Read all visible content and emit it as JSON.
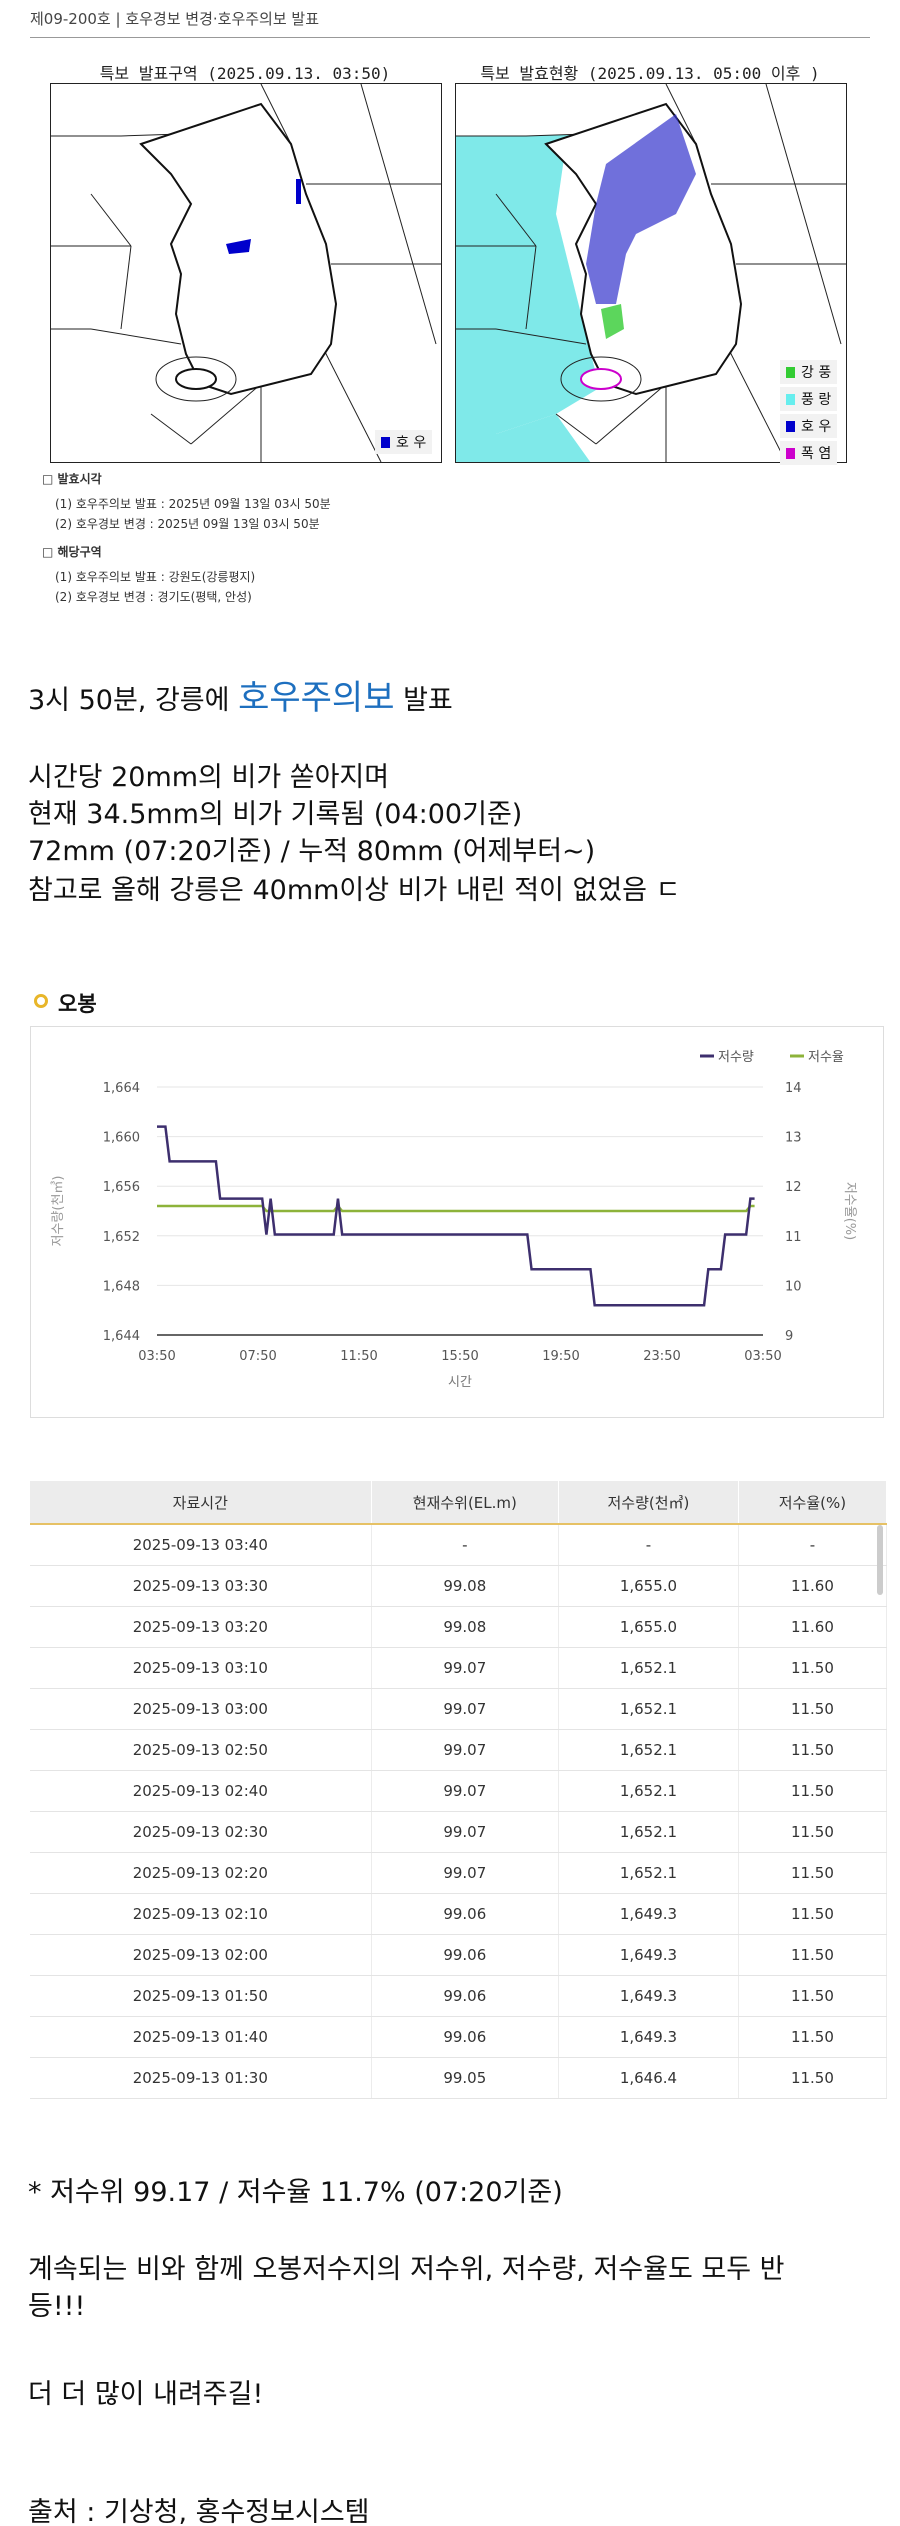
{
  "header": {
    "title": "제09-200호 | 호우경보 변경·호우주의보 발표"
  },
  "maps": [
    {
      "title": "특보 발표구역 (2025.09.13. 03:50)",
      "legend": [
        {
          "label": "호 우",
          "color": "#0000cc"
        }
      ]
    },
    {
      "title": "특보 발효현황 (2025.09.13. 05:00 이후 )",
      "legend": [
        {
          "label": "강 풍",
          "color": "#33cc33"
        },
        {
          "label": "풍 랑",
          "color": "#66eeee"
        },
        {
          "label": "호 우",
          "color": "#0000cc"
        },
        {
          "label": "폭 염",
          "color": "#cc00cc"
        }
      ]
    }
  ],
  "notice": {
    "time_heading": "□ 발효시각",
    "time_items": [
      "(1) 호우주의보 발표 : 2025년 09월 13일 03시 50분",
      "(2) 호우경보 변경 : 2025년 09월 13일 03시 50분"
    ],
    "area_heading": "□ 해당구역",
    "area_items": [
      "(1) 호우주의보 발표 : 강원도(강릉평지)",
      "(2) 호우경보 변경 : 경기도(평택, 안성)"
    ]
  },
  "post": {
    "line1_a": "3시 50분, 강릉에 ",
    "line1_hl": "호우주의보",
    "line1_b": " 발표",
    "line2": "시간당 20mm의 비가 쏟아지며",
    "line3": "현재 34.5mm의 비가 기록됨 (04:00기준)",
    "line4": "72mm (07:20기준) / 누적 80mm (어제부터~)",
    "line5": "참고로 올해 강릉은 40mm이상 비가 내린 적이 없었음 ㄷ",
    "line6": "* 저수위 99.17 / 저수율 11.7% (07:20기준)",
    "line7": "계속되는 비와 함께 오봉저수지의 저수위, 저수량, 저수율도 모두 반",
    "line8": "등!!!",
    "line9": "더 더 많이 내려주길!",
    "line10": "출처 : 기상청, 홍수정보시스템",
    "highlight_color": "#1d6fbf"
  },
  "chart_data": {
    "type": "line",
    "title": "오봉",
    "xlabel": "시간",
    "ylabel": "저수량(천㎥)",
    "ylabel_right": "저수율(%)",
    "x_ticks": [
      "03:50",
      "07:50",
      "11:50",
      "15:50",
      "19:50",
      "23:50",
      "03:50"
    ],
    "ylim": [
      1644,
      1664
    ],
    "y_ticks": [
      "1,644",
      "1,648",
      "1,652",
      "1,656",
      "1,660",
      "1,664"
    ],
    "ylim_right": [
      9,
      14
    ],
    "y_ticks_right": [
      "9",
      "10",
      "11",
      "12",
      "13",
      "14"
    ],
    "grid": true,
    "legend_position": "top-right",
    "series": [
      {
        "name": "저수량",
        "color": "#3d2f6e",
        "axis": "left",
        "points": [
          [
            "03:50",
            1660.8
          ],
          [
            "04:10",
            1660.8
          ],
          [
            "04:20",
            1658.0
          ],
          [
            "06:10",
            1658.0
          ],
          [
            "06:20",
            1655.0
          ],
          [
            "08:00",
            1655.0
          ],
          [
            "08:10",
            1652.1
          ],
          [
            "08:20",
            1655.0
          ],
          [
            "08:30",
            1652.1
          ],
          [
            "10:50",
            1652.1
          ],
          [
            "11:00",
            1655.0
          ],
          [
            "11:10",
            1652.1
          ],
          [
            "18:30",
            1652.1
          ],
          [
            "18:40",
            1649.3
          ],
          [
            "21:00",
            1649.3
          ],
          [
            "21:10",
            1646.4
          ],
          [
            "01:30",
            1646.4
          ],
          [
            "01:40",
            1649.3
          ],
          [
            "02:10",
            1649.3
          ],
          [
            "02:20",
            1652.1
          ],
          [
            "03:10",
            1652.1
          ],
          [
            "03:20",
            1655.0
          ],
          [
            "03:30",
            1655.0
          ]
        ]
      },
      {
        "name": "저수율",
        "color": "#8db33a",
        "axis": "right",
        "points": [
          [
            "03:50",
            11.6
          ],
          [
            "08:00",
            11.6
          ],
          [
            "08:10",
            11.5
          ],
          [
            "10:50",
            11.5
          ],
          [
            "11:00",
            11.6
          ],
          [
            "11:10",
            11.5
          ],
          [
            "03:10",
            11.5
          ],
          [
            "03:20",
            11.6
          ],
          [
            "03:30",
            11.6
          ]
        ]
      }
    ]
  },
  "table": {
    "headers": [
      "자료시간",
      "현재수위(EL.m)",
      "저수량(천㎥)",
      "저수율(%)"
    ],
    "rows": [
      [
        "2025-09-13 03:40",
        "-",
        "-",
        "-"
      ],
      [
        "2025-09-13 03:30",
        "99.08",
        "1,655.0",
        "11.60"
      ],
      [
        "2025-09-13 03:20",
        "99.08",
        "1,655.0",
        "11.60"
      ],
      [
        "2025-09-13 03:10",
        "99.07",
        "1,652.1",
        "11.50"
      ],
      [
        "2025-09-13 03:00",
        "99.07",
        "1,652.1",
        "11.50"
      ],
      [
        "2025-09-13 02:50",
        "99.07",
        "1,652.1",
        "11.50"
      ],
      [
        "2025-09-13 02:40",
        "99.07",
        "1,652.1",
        "11.50"
      ],
      [
        "2025-09-13 02:30",
        "99.07",
        "1,652.1",
        "11.50"
      ],
      [
        "2025-09-13 02:20",
        "99.07",
        "1,652.1",
        "11.50"
      ],
      [
        "2025-09-13 02:10",
        "99.06",
        "1,649.3",
        "11.50"
      ],
      [
        "2025-09-13 02:00",
        "99.06",
        "1,649.3",
        "11.50"
      ],
      [
        "2025-09-13 01:50",
        "99.06",
        "1,649.3",
        "11.50"
      ],
      [
        "2025-09-13 01:40",
        "99.06",
        "1,649.3",
        "11.50"
      ],
      [
        "2025-09-13 01:30",
        "99.05",
        "1,646.4",
        "11.50"
      ]
    ]
  }
}
